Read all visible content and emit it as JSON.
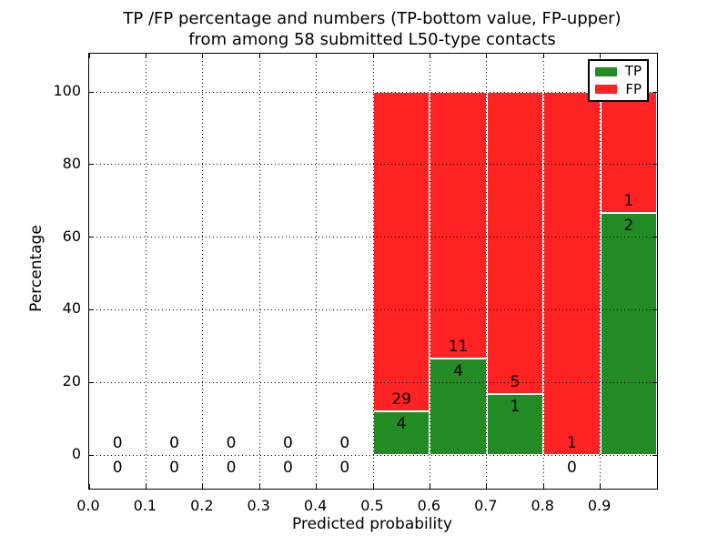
{
  "title": {
    "line1": "TP /FP percentage and numbers (TP-bottom value, FP-upper)",
    "line2": "from among 58 submitted L50-type contacts"
  },
  "chart_data": {
    "type": "bar",
    "stacked": true,
    "title": "TP /FP percentage and numbers (TP-bottom value, FP-upper)\nfrom among 58 submitted L50-type contacts",
    "xlabel": "Predicted probability",
    "ylabel": "Percentage",
    "xlim": [
      0.0,
      1.0
    ],
    "ylim": [
      0,
      100
    ],
    "grid": true,
    "total_contacts": 58,
    "xtick_values": [
      0.0,
      0.1,
      0.2,
      0.3,
      0.4,
      0.5,
      0.6,
      0.7,
      0.8,
      0.9
    ],
    "xtick_labels": [
      "0.0",
      "0.1",
      "0.2",
      "0.3",
      "0.4",
      "0.5",
      "0.6",
      "0.7",
      "0.8",
      "0.9"
    ],
    "ytick_values": [
      0,
      20,
      40,
      60,
      80,
      100
    ],
    "ytick_labels": [
      "0",
      "20",
      "40",
      "60",
      "80",
      "100"
    ],
    "colors": {
      "tp": "#238b23",
      "fp": "#ff2222"
    },
    "legend": {
      "position": "upper right",
      "entries": [
        {
          "label": "TP",
          "color": "#238b23"
        },
        {
          "label": "FP",
          "color": "#ff2222"
        }
      ]
    },
    "bins": [
      {
        "x0": 0.0,
        "x1": 0.1,
        "tp": 0,
        "fp": 0,
        "tp_pct": 0,
        "fp_pct": 0
      },
      {
        "x0": 0.1,
        "x1": 0.2,
        "tp": 0,
        "fp": 0,
        "tp_pct": 0,
        "fp_pct": 0
      },
      {
        "x0": 0.2,
        "x1": 0.3,
        "tp": 0,
        "fp": 0,
        "tp_pct": 0,
        "fp_pct": 0
      },
      {
        "x0": 0.3,
        "x1": 0.4,
        "tp": 0,
        "fp": 0,
        "tp_pct": 0,
        "fp_pct": 0
      },
      {
        "x0": 0.4,
        "x1": 0.5,
        "tp": 0,
        "fp": 0,
        "tp_pct": 0,
        "fp_pct": 0
      },
      {
        "x0": 0.5,
        "x1": 0.6,
        "tp": 4,
        "fp": 29,
        "tp_pct": 12.12,
        "fp_pct": 87.88
      },
      {
        "x0": 0.6,
        "x1": 0.7,
        "tp": 4,
        "fp": 11,
        "tp_pct": 26.67,
        "fp_pct": 73.33
      },
      {
        "x0": 0.7,
        "x1": 0.8,
        "tp": 1,
        "fp": 5,
        "tp_pct": 16.67,
        "fp_pct": 83.33
      },
      {
        "x0": 0.8,
        "x1": 0.9,
        "tp": 0,
        "fp": 1,
        "tp_pct": 0,
        "fp_pct": 100
      },
      {
        "x0": 0.9,
        "x1": 1.0,
        "tp": 2,
        "fp": 1,
        "tp_pct": 66.67,
        "fp_pct": 33.33
      }
    ],
    "series": [
      {
        "name": "TP",
        "counts": [
          0,
          0,
          0,
          0,
          0,
          4,
          4,
          1,
          0,
          2
        ],
        "values_pct": [
          0,
          0,
          0,
          0,
          0,
          12.12,
          26.67,
          16.67,
          0,
          66.67
        ]
      },
      {
        "name": "FP",
        "counts": [
          0,
          0,
          0,
          0,
          0,
          29,
          11,
          5,
          1,
          1
        ],
        "values_pct": [
          0,
          0,
          0,
          0,
          0,
          87.88,
          73.33,
          83.33,
          100,
          33.33
        ]
      }
    ]
  }
}
